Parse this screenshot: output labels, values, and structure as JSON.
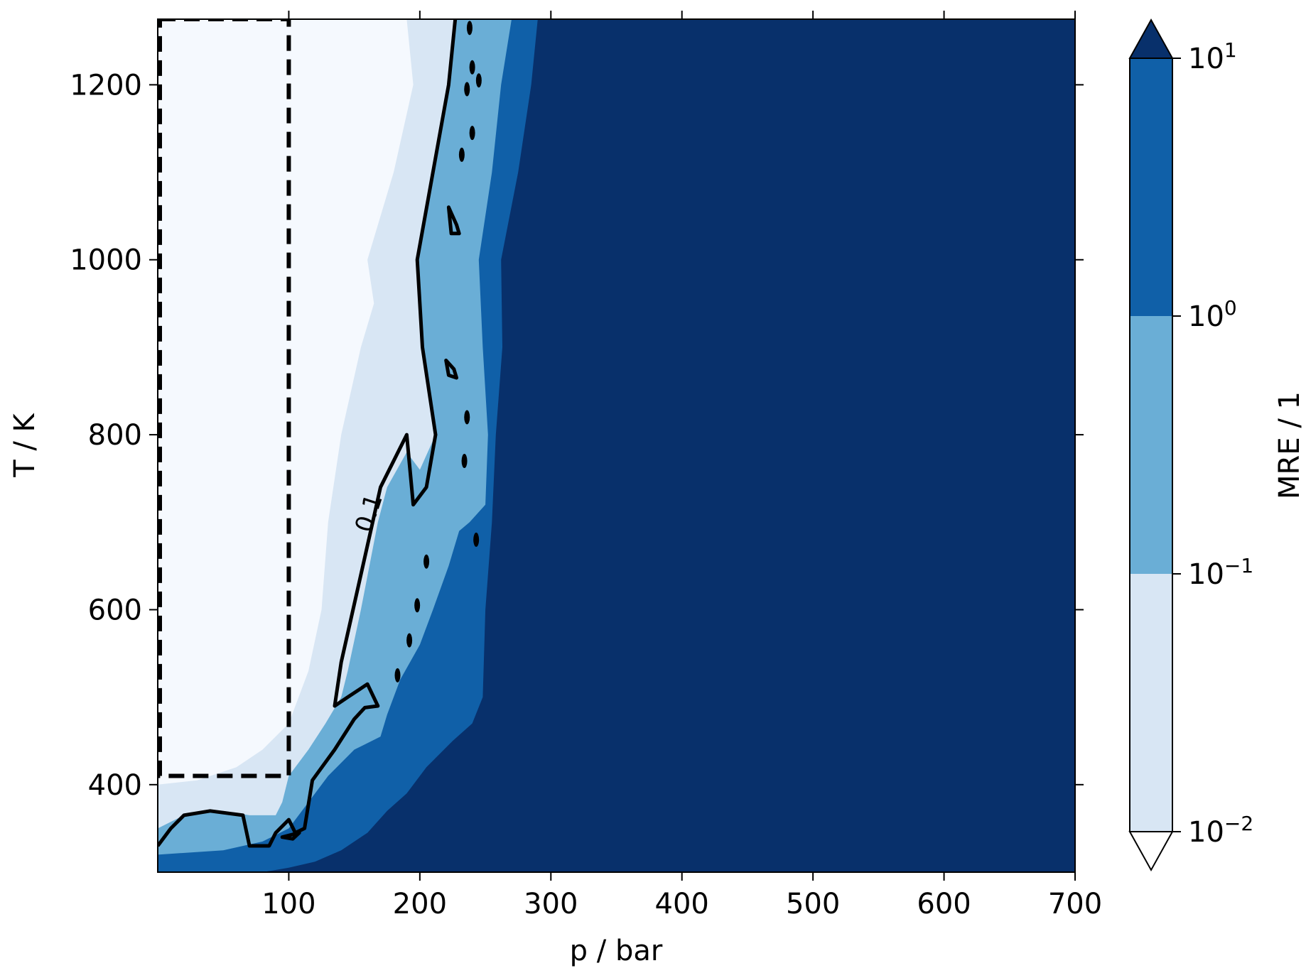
{
  "chart_data": {
    "type": "heatmap",
    "subtype": "filled-contour",
    "xlabel": "p / bar",
    "ylabel": "T / K",
    "xlim": [
      0,
      700
    ],
    "ylim": [
      300,
      1275
    ],
    "x_ticks": [
      100,
      200,
      300,
      400,
      500,
      600,
      700
    ],
    "y_ticks": [
      400,
      600,
      800,
      1000,
      1200
    ],
    "x_tick_labels": [
      "100",
      "200",
      "300",
      "400",
      "500",
      "600",
      "700"
    ],
    "y_tick_labels": [
      "400",
      "600",
      "800",
      "1000",
      "1200"
    ],
    "colorbar": {
      "label": "MRE / 1",
      "scale": "log",
      "extend": "both",
      "levels": [
        0.01,
        0.1,
        1,
        10
      ],
      "tick_labels": [
        {
          "base": "10",
          "exp": "−2"
        },
        {
          "base": "10",
          "exp": "−1"
        },
        {
          "base": "10",
          "exp": "0"
        },
        {
          "base": "10",
          "exp": "1"
        }
      ],
      "colors": {
        "under": "#ffffff",
        "band_0": "#d8e6f4",
        "band_1": "#6aaed6",
        "band_2": "#1060a8",
        "over": "#08306b"
      }
    },
    "background_color": "#f5f9fe",
    "contour_line": {
      "level": 0.1,
      "label": "0.1",
      "color": "#000000"
    },
    "validity_region": {
      "p_range": [
        0,
        100
      ],
      "T_range": [
        410,
        1275
      ],
      "style": "dashed"
    },
    "regions": {
      "band_0_boundary": [
        [
          190,
          1275
        ],
        [
          195,
          1200
        ],
        [
          180,
          1100
        ],
        [
          160,
          1000
        ],
        [
          165,
          950
        ],
        [
          155,
          900
        ],
        [
          140,
          800
        ],
        [
          130,
          700
        ],
        [
          125,
          600
        ],
        [
          115,
          530
        ],
        [
          100,
          470
        ],
        [
          80,
          440
        ],
        [
          60,
          420
        ],
        [
          30,
          405
        ],
        [
          0,
          400
        ]
      ],
      "band_1_boundary": [
        [
          227,
          1275
        ],
        [
          222,
          1200
        ],
        [
          210,
          1100
        ],
        [
          198,
          1000
        ],
        [
          202,
          900
        ],
        [
          212,
          800
        ],
        [
          200,
          760
        ],
        [
          190,
          780
        ],
        [
          175,
          740
        ],
        [
          168,
          700
        ],
        [
          155,
          600
        ],
        [
          145,
          530
        ],
        [
          140,
          500
        ],
        [
          128,
          470
        ],
        [
          115,
          440
        ],
        [
          100,
          410
        ],
        [
          95,
          380
        ],
        [
          90,
          365
        ],
        [
          70,
          365
        ],
        [
          50,
          370
        ],
        [
          20,
          365
        ],
        [
          0,
          350
        ]
      ],
      "band_2_boundary": [
        [
          270,
          1275
        ],
        [
          262,
          1200
        ],
        [
          255,
          1100
        ],
        [
          245,
          1000
        ],
        [
          248,
          900
        ],
        [
          252,
          800
        ],
        [
          250,
          720
        ],
        [
          238,
          700
        ],
        [
          230,
          690
        ],
        [
          222,
          650
        ],
        [
          210,
          600
        ],
        [
          200,
          560
        ],
        [
          185,
          520
        ],
        [
          175,
          480
        ],
        [
          170,
          455
        ],
        [
          150,
          440
        ],
        [
          130,
          410
        ],
        [
          115,
          380
        ],
        [
          100,
          350
        ],
        [
          80,
          335
        ],
        [
          50,
          325
        ],
        [
          0,
          320
        ],
        [
          0,
          300
        ]
      ],
      "over_boundary": [
        [
          290,
          1275
        ],
        [
          285,
          1200
        ],
        [
          275,
          1100
        ],
        [
          262,
          1000
        ],
        [
          263,
          900
        ],
        [
          258,
          800
        ],
        [
          255,
          700
        ],
        [
          250,
          600
        ],
        [
          248,
          500
        ],
        [
          240,
          470
        ],
        [
          225,
          450
        ],
        [
          205,
          420
        ],
        [
          190,
          390
        ],
        [
          175,
          370
        ],
        [
          160,
          345
        ],
        [
          140,
          325
        ],
        [
          120,
          312
        ],
        [
          100,
          305
        ],
        [
          80,
          300
        ]
      ]
    },
    "contour_0_1_main": [
      [
        227,
        1275
      ],
      [
        222,
        1200
      ],
      [
        210,
        1100
      ],
      [
        198,
        1000
      ],
      [
        202,
        900
      ],
      [
        212,
        800
      ],
      [
        205,
        740
      ],
      [
        195,
        720
      ],
      [
        190,
        800
      ],
      [
        170,
        740
      ],
      [
        155,
        640
      ],
      [
        140,
        540
      ],
      [
        135,
        490
      ],
      [
        145,
        500
      ],
      [
        160,
        515
      ],
      [
        168,
        490
      ],
      [
        158,
        488
      ],
      [
        150,
        475
      ],
      [
        135,
        440
      ],
      [
        118,
        405
      ],
      [
        112,
        350
      ],
      [
        105,
        345
      ],
      [
        100,
        360
      ],
      [
        90,
        345
      ],
      [
        85,
        330
      ],
      [
        70,
        330
      ],
      [
        65,
        365
      ],
      [
        40,
        370
      ],
      [
        20,
        365
      ],
      [
        10,
        350
      ],
      [
        0,
        330
      ]
    ],
    "contour_0_1_islands": [
      [
        [
          222,
          1060
        ],
        [
          228,
          1040
        ],
        [
          230,
          1030
        ],
        [
          224,
          1030
        ],
        [
          222,
          1060
        ]
      ],
      [
        [
          220,
          885
        ],
        [
          226,
          875
        ],
        [
          228,
          865
        ],
        [
          222,
          868
        ],
        [
          220,
          885
        ]
      ],
      [
        [
          108,
          345
        ],
        [
          100,
          342
        ],
        [
          95,
          340
        ],
        [
          103,
          338
        ],
        [
          108,
          345
        ]
      ]
    ],
    "contour_0_1_dots": [
      [
        238,
        1265
      ],
      [
        240,
        1220
      ],
      [
        245,
        1205
      ],
      [
        236,
        1195
      ],
      [
        240,
        1145
      ],
      [
        232,
        1120
      ],
      [
        236,
        820
      ],
      [
        234,
        770
      ],
      [
        243,
        680
      ],
      [
        205,
        655
      ],
      [
        198,
        605
      ],
      [
        192,
        565
      ],
      [
        183,
        525
      ]
    ]
  }
}
